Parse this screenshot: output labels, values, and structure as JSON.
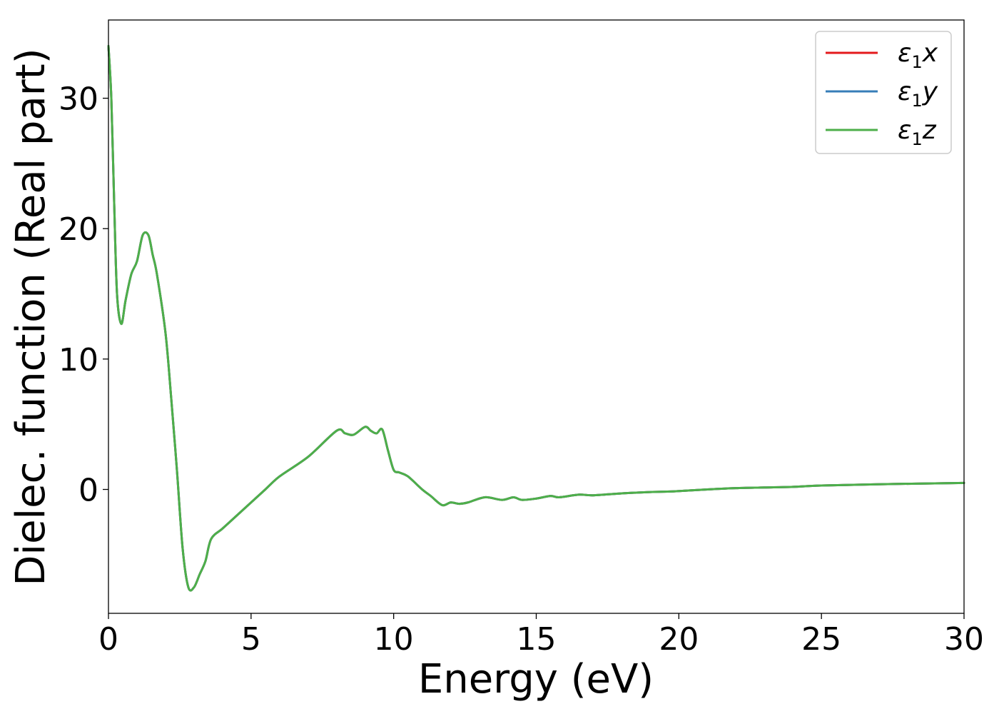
{
  "chart_data": {
    "type": "line",
    "xlabel": "Energy (eV)",
    "ylabel": "Dielec. function (Real part)",
    "xlim": [
      0,
      30
    ],
    "ylim": [
      -9.5,
      36
    ],
    "x_ticks": [
      0,
      5,
      10,
      15,
      20,
      25,
      30
    ],
    "x_tick_labels": [
      "0",
      "5",
      "10",
      "15",
      "20",
      "25",
      "30"
    ],
    "y_ticks": [
      0,
      10,
      20,
      30
    ],
    "y_tick_labels": [
      "0",
      "10",
      "20",
      "30"
    ],
    "grid": false,
    "legend": {
      "location": "top-right",
      "entries": [
        {
          "symbol": "ε",
          "subscript": "1",
          "component": "x",
          "color": "#e41a1c"
        },
        {
          "symbol": "ε",
          "subscript": "1",
          "component": "y",
          "color": "#377eb8"
        },
        {
          "symbol": "ε",
          "subscript": "1",
          "component": "z",
          "color": "#4daf4a"
        }
      ]
    },
    "series_colors": [
      "#e41a1c",
      "#377eb8",
      "#4daf4a"
    ],
    "x": [
      0,
      0.1,
      0.2,
      0.3,
      0.45,
      0.6,
      0.8,
      1.0,
      1.2,
      1.4,
      1.55,
      1.7,
      2.0,
      2.2,
      2.4,
      2.6,
      2.8,
      3.0,
      3.2,
      3.4,
      3.6,
      4.0,
      4.5,
      5.0,
      5.5,
      6.0,
      7.0,
      8.0,
      8.3,
      8.6,
      9.0,
      9.2,
      9.4,
      9.6,
      9.8,
      10.0,
      10.2,
      10.5,
      11.0,
      11.3,
      11.7,
      12.0,
      12.3,
      12.6,
      13.2,
      13.8,
      14.2,
      14.5,
      15.0,
      15.5,
      15.8,
      16.5,
      17.0,
      18.0,
      19.0,
      19.8,
      21.0,
      22.0,
      23.0,
      24.0,
      25.0,
      27.0,
      30.0
    ],
    "series": [
      {
        "name": "ε1x",
        "values": [
          34,
          30,
          22,
          15,
          12.7,
          14.5,
          16.5,
          17.5,
          19.5,
          19.5,
          18,
          16.5,
          12,
          7,
          1.5,
          -4.5,
          -7.5,
          -7.5,
          -6.5,
          -5.5,
          -3.8,
          -3,
          -2,
          -1,
          0,
          1,
          2.5,
          4.5,
          4.3,
          4.2,
          4.8,
          4.5,
          4.3,
          4.6,
          3,
          1.5,
          1.3,
          1,
          0,
          -0.5,
          -1.2,
          -1,
          -1.1,
          -1,
          -0.6,
          -0.8,
          -0.6,
          -0.8,
          -0.7,
          -0.5,
          -0.6,
          -0.4,
          -0.45,
          -0.3,
          -0.2,
          -0.15,
          0,
          0.1,
          0.15,
          0.2,
          0.3,
          0.4,
          0.5
        ]
      },
      {
        "name": "ε1y",
        "values": [
          34,
          30,
          22,
          15,
          12.7,
          14.5,
          16.5,
          17.5,
          19.5,
          19.5,
          18,
          16.5,
          12,
          7,
          1.5,
          -4.5,
          -7.5,
          -7.5,
          -6.5,
          -5.5,
          -3.8,
          -3,
          -2,
          -1,
          0,
          1,
          2.5,
          4.5,
          4.3,
          4.2,
          4.8,
          4.5,
          4.3,
          4.6,
          3,
          1.5,
          1.3,
          1,
          0,
          -0.5,
          -1.2,
          -1,
          -1.1,
          -1,
          -0.6,
          -0.8,
          -0.6,
          -0.8,
          -0.7,
          -0.5,
          -0.6,
          -0.4,
          -0.45,
          -0.3,
          -0.2,
          -0.15,
          0,
          0.1,
          0.15,
          0.2,
          0.3,
          0.4,
          0.5
        ]
      },
      {
        "name": "ε1z",
        "values": [
          34,
          30,
          22,
          15,
          12.7,
          14.5,
          16.5,
          17.5,
          19.5,
          19.5,
          18,
          16.5,
          12,
          7,
          1.5,
          -4.5,
          -7.5,
          -7.5,
          -6.5,
          -5.5,
          -3.8,
          -3,
          -2,
          -1,
          0,
          1,
          2.5,
          4.5,
          4.3,
          4.2,
          4.8,
          4.5,
          4.3,
          4.6,
          3,
          1.5,
          1.3,
          1,
          0,
          -0.5,
          -1.2,
          -1,
          -1.1,
          -1,
          -0.6,
          -0.8,
          -0.6,
          -0.8,
          -0.7,
          -0.5,
          -0.6,
          -0.4,
          -0.45,
          -0.3,
          -0.2,
          -0.15,
          0,
          0.1,
          0.15,
          0.2,
          0.3,
          0.4,
          0.5
        ]
      }
    ]
  }
}
